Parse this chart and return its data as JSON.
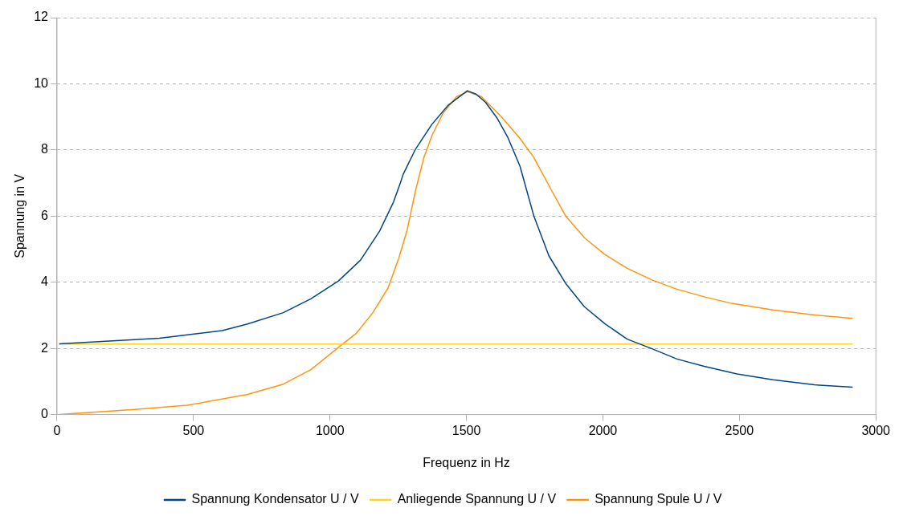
{
  "chart_data": {
    "type": "line",
    "xlabel": "Frequenz in Hz",
    "ylabel": "Spannung in V",
    "xlim": [
      0,
      3000
    ],
    "xticks": [
      0,
      500,
      1000,
      1500,
      2000,
      2500,
      3000
    ],
    "ylim": [
      0,
      12
    ],
    "yticks": [
      0,
      2,
      4,
      6,
      8,
      10,
      12
    ],
    "grid": "y",
    "legend": "bottom",
    "marker": "none",
    "line_style": "solid",
    "series": [
      {
        "name": "Spannung Kondensator U / V",
        "color": "#004586",
        "x": [
          8,
          375,
          605,
          698,
          829,
          930,
          1031,
          1112,
          1182,
          1233,
          1258,
          1268,
          1313,
          1373,
          1434,
          1503,
          1535,
          1570,
          1611,
          1651,
          1696,
          1747,
          1802,
          1863,
          1932,
          2008,
          2089,
          2180,
          2271,
          2371,
          2491,
          2623,
          2775,
          2915
        ],
        "values": [
          2.14,
          2.31,
          2.54,
          2.74,
          3.08,
          3.5,
          4.04,
          4.67,
          5.55,
          6.43,
          7.01,
          7.26,
          8.02,
          8.77,
          9.36,
          9.79,
          9.69,
          9.44,
          8.98,
          8.39,
          7.51,
          6.0,
          4.8,
          3.97,
          3.26,
          2.74,
          2.28,
          1.99,
          1.68,
          1.46,
          1.23,
          1.05,
          0.9,
          0.83
        ]
      },
      {
        "name": "Anliegende Spannung U / V",
        "color": "#ffd320",
        "x": [
          8,
          2915
        ],
        "values": [
          2.13,
          2.13
        ]
      },
      {
        "name": "Spannung Spule U / V",
        "color": "#ff950e",
        "x": [
          8,
          275,
          477,
          698,
          829,
          930,
          1031,
          1097,
          1157,
          1213,
          1253,
          1283,
          1313,
          1344,
          1374,
          1414,
          1464,
          1505,
          1555,
          1626,
          1696,
          1747,
          1807,
          1863,
          1933,
          2005,
          2089,
          2180,
          2271,
          2371,
          2472,
          2623,
          2775,
          2915
        ],
        "values": [
          0,
          0.15,
          0.28,
          0.61,
          0.92,
          1.36,
          2.03,
          2.46,
          3.08,
          3.83,
          4.75,
          5.59,
          6.76,
          7.77,
          8.44,
          9.11,
          9.61,
          9.76,
          9.61,
          9.02,
          8.35,
          7.77,
          6.85,
          6.01,
          5.34,
          4.85,
          4.42,
          4.07,
          3.79,
          3.56,
          3.36,
          3.16,
          3.01,
          2.91
        ]
      }
    ]
  }
}
